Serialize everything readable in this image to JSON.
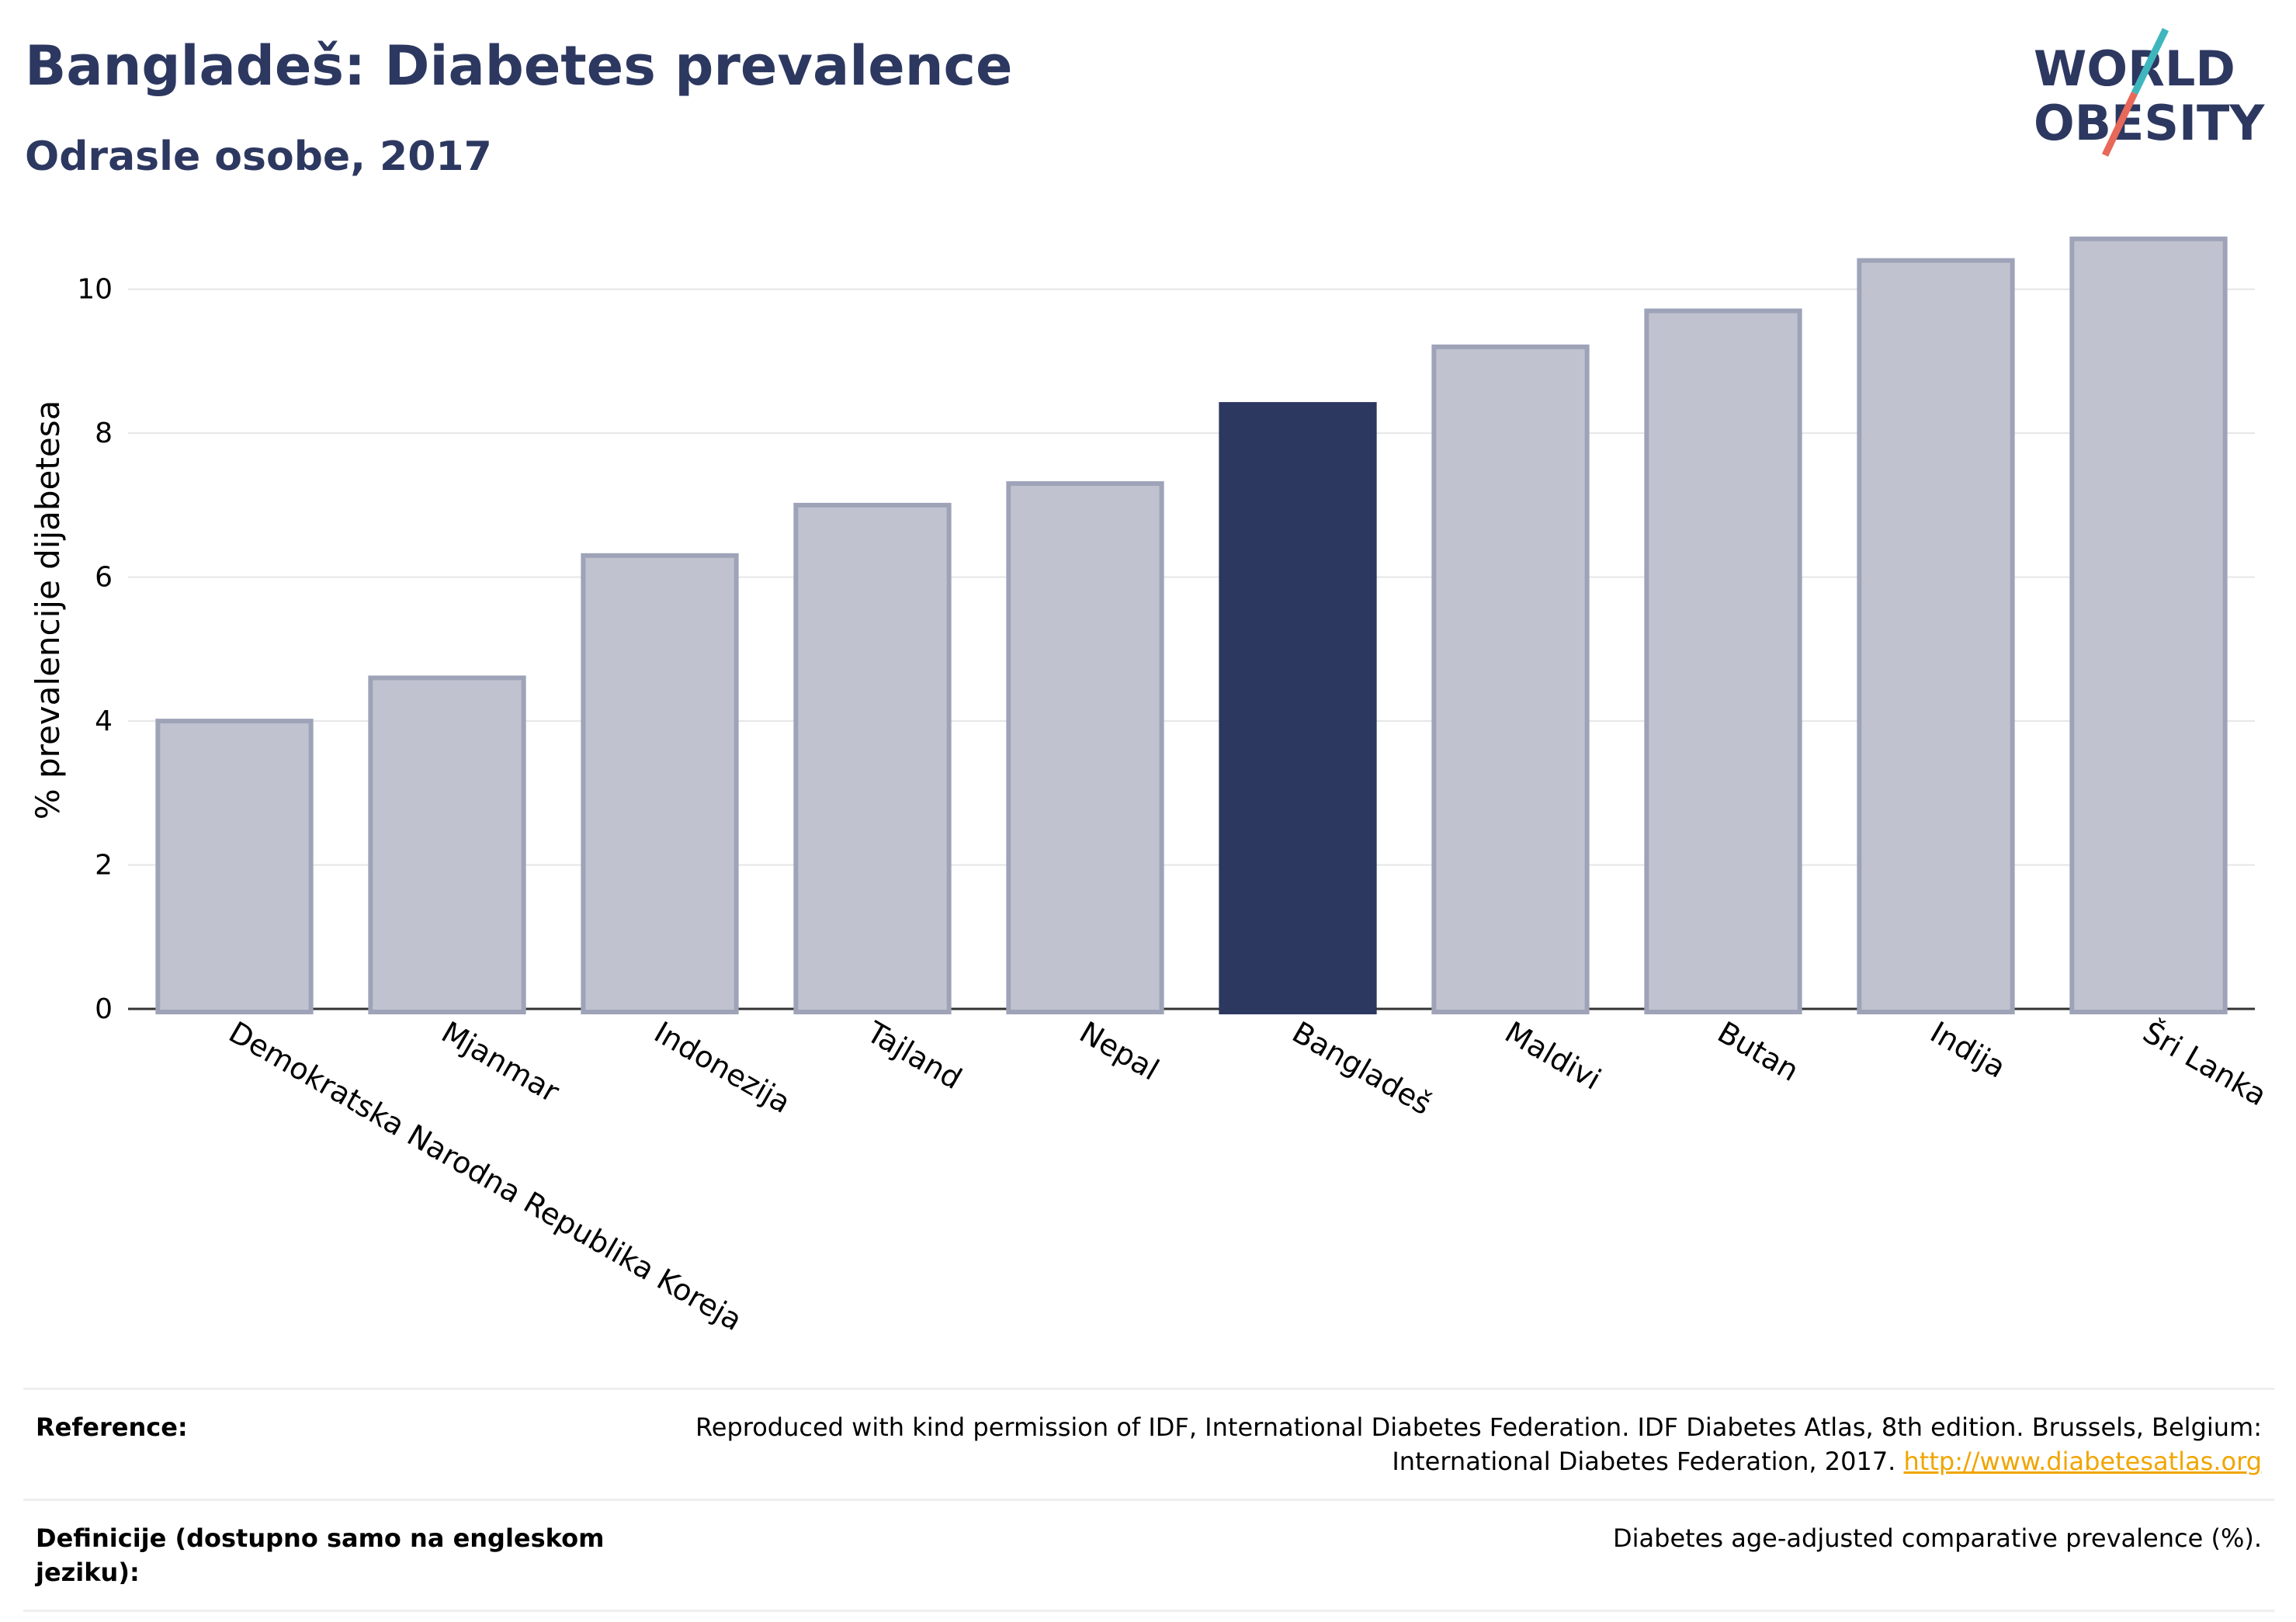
{
  "header": {
    "title": "Bangladeš: Diabetes prevalence",
    "subtitle": "Odrasle osobe, 2017"
  },
  "logo": {
    "line1": "WORLD",
    "line2": "OBESITY",
    "colors": {
      "text": "#2d3861",
      "slash_teal": "#3fb6bd",
      "slash_red": "#e8685a"
    }
  },
  "chart_data": {
    "type": "bar",
    "title": "",
    "xlabel": "",
    "ylabel": "% prevalencije dijabetesa",
    "ylim": [
      0,
      11
    ],
    "yticks": [
      0,
      2,
      4,
      6,
      8,
      10
    ],
    "grid": true,
    "categories": [
      "Demokratska Narodna Republika Koreja",
      "Mjanmar",
      "Indonezija",
      "Tajland",
      "Nepal",
      "Bangladeš",
      "Maldivi",
      "Butan",
      "Indija",
      "Šri Lanka"
    ],
    "values": [
      4.0,
      4.6,
      6.3,
      7.0,
      7.3,
      8.4,
      9.2,
      9.7,
      10.4,
      10.7
    ],
    "highlight": "Bangladeš",
    "colors": {
      "bar": "#c0c3cf",
      "bar_edge": "#9ea3b8",
      "highlight": "#2d3861"
    }
  },
  "reference": {
    "rows": [
      {
        "key": "Reference:",
        "value": "Reproduced with kind permission of IDF, International Diabetes Federation. IDF Diabetes Atlas, 8th edition. Brussels, Belgium: International Diabetes Federation, 2017.",
        "link": "http://www.diabetesatlas.org"
      },
      {
        "key": "Definicije (dostupno samo na engleskom jeziku):",
        "value": "Diabetes age-adjusted comparative prevalence (%).",
        "link": ""
      }
    ]
  }
}
